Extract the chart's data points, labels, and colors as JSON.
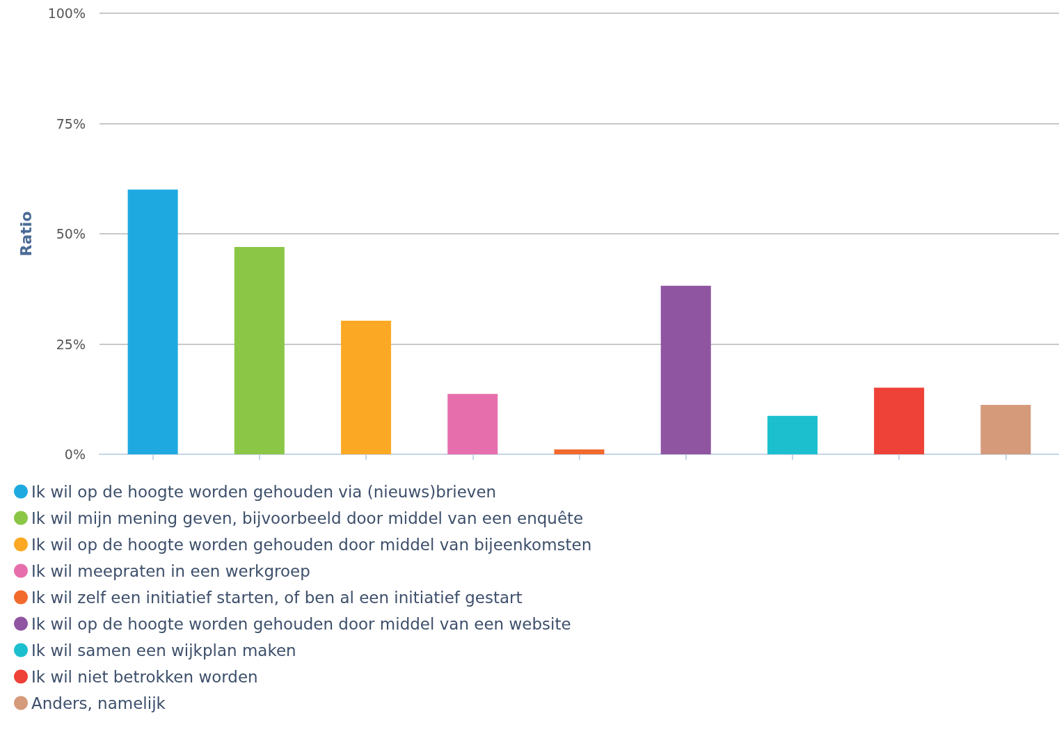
{
  "chart_data": {
    "type": "bar",
    "ylabel": "Ratio",
    "categories": [
      null,
      null,
      null,
      null,
      null,
      null,
      null,
      null,
      null
    ],
    "series": [
      {
        "name": "Ik wil op de hoogte worden gehouden via (nieuws)brieven",
        "color": "#1eaae1",
        "values": [
          60,
          null,
          null,
          null,
          null,
          null,
          null,
          null,
          null
        ]
      },
      {
        "name": "Ik wil mijn mening geven, bijvoorbeeld door middel van een enquête",
        "color": "#8bc646",
        "values": [
          null,
          47,
          null,
          null,
          null,
          null,
          null,
          null,
          null
        ]
      },
      {
        "name": "Ik wil op de hoogte worden gehouden door middel van bijeenkomsten",
        "color": "#fba924",
        "values": [
          null,
          null,
          30.3,
          null,
          null,
          null,
          null,
          null,
          null
        ]
      },
      {
        "name": "Ik wil meepraten in een werkgroep",
        "color": "#e76ead",
        "values": [
          null,
          null,
          null,
          13.7,
          null,
          null,
          null,
          null,
          null
        ]
      },
      {
        "name": "Ik wil zelf een initiatief starten, of ben al een initiatief gestart",
        "color": "#f26a2c",
        "values": [
          null,
          null,
          null,
          null,
          1.1,
          null,
          null,
          null,
          null
        ]
      },
      {
        "name": "Ik wil op de hoogte worden gehouden door middel van een website",
        "color": "#8f55a1",
        "values": [
          null,
          null,
          null,
          null,
          null,
          38.2,
          null,
          null,
          null
        ]
      },
      {
        "name": "Ik wil samen een wijkplan maken",
        "color": "#1cbfce",
        "values": [
          null,
          null,
          null,
          null,
          null,
          null,
          8.7,
          null,
          null
        ]
      },
      {
        "name": "Ik wil niet betrokken worden",
        "color": "#ee4137",
        "values": [
          null,
          null,
          null,
          null,
          null,
          null,
          null,
          15.1,
          null
        ]
      },
      {
        "name": "Anders, namelijk",
        "color": "#d59a7a",
        "values": [
          null,
          null,
          null,
          null,
          null,
          null,
          null,
          null,
          11.2
        ]
      }
    ],
    "ylim": [
      0,
      100
    ],
    "yticks": [
      {
        "value": 0,
        "label": "0%"
      },
      {
        "value": 25,
        "label": "25%"
      },
      {
        "value": 50,
        "label": "50%"
      },
      {
        "value": 75,
        "label": "75%"
      },
      {
        "value": 100,
        "label": "100%"
      }
    ],
    "grid": "y",
    "legend": "bottom left"
  }
}
